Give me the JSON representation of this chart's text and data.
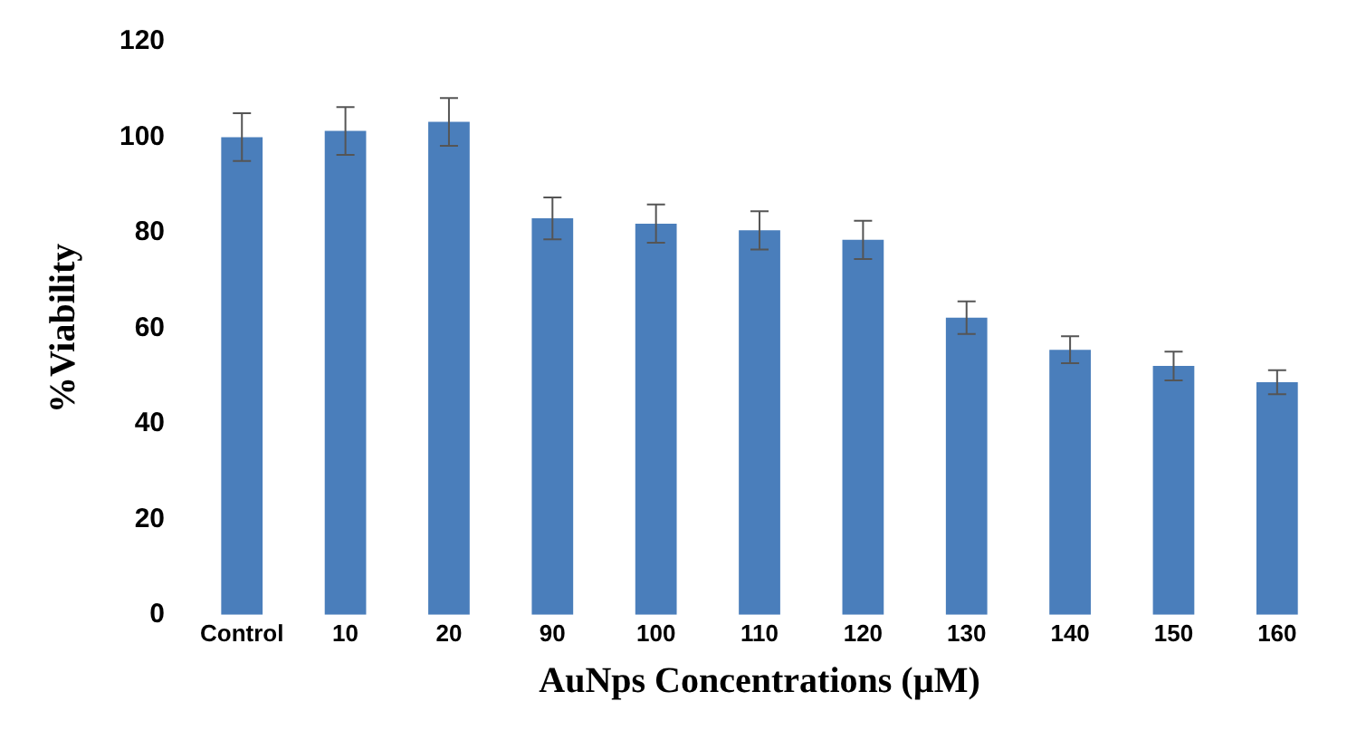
{
  "chart_data": {
    "type": "bar",
    "xlabel": "AuNps Concentrations (µM)",
    "ylabel": "%Viability",
    "categories": [
      "Control",
      "10",
      "20",
      "90",
      "100",
      "110",
      "120",
      "130",
      "140",
      "150",
      "160"
    ],
    "values": [
      100,
      101.3,
      103.2,
      83,
      81.9,
      80.5,
      78.5,
      62.2,
      55.5,
      52.1,
      48.7
    ],
    "errors": [
      5,
      5,
      5,
      4.4,
      4,
      4,
      4,
      3.4,
      2.8,
      3,
      2.5
    ],
    "color": "#4a7ebb",
    "ylim": [
      0,
      120
    ],
    "yticks": [
      0,
      20,
      40,
      60,
      80,
      100,
      120
    ],
    "grid": false,
    "legend": false
  }
}
